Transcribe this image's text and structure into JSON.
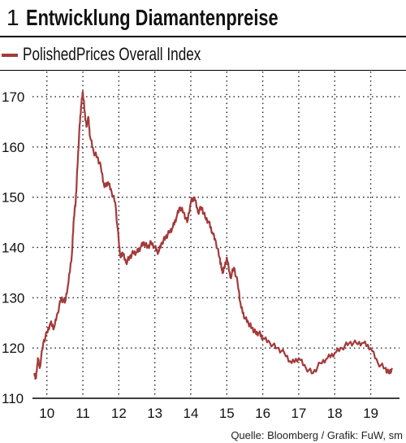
{
  "header": {
    "number": "1",
    "title": "Entwicklung Diamantenpreise"
  },
  "legend": {
    "label": "PolishedPrices Overall Index",
    "color": "#a33a3a"
  },
  "source": "Quelle: Bloomberg / Grafik: FuW, sm",
  "chart_data": {
    "type": "line",
    "title": "Entwicklung Diamantenpreise",
    "xlabel": "",
    "ylabel": "",
    "xlim": [
      2009.6,
      2019.8
    ],
    "ylim": [
      110,
      175
    ],
    "x_ticks": [
      2010,
      2011,
      2012,
      2013,
      2014,
      2015,
      2016,
      2017,
      2018,
      2019
    ],
    "x_tick_labels": [
      "10",
      "11",
      "12",
      "13",
      "14",
      "15",
      "16",
      "17",
      "18",
      "19"
    ],
    "y_ticks": [
      110,
      120,
      130,
      140,
      150,
      160,
      170
    ],
    "y_tick_labels": [
      "110",
      "120",
      "130",
      "140",
      "150",
      "160",
      "170"
    ],
    "grid": true,
    "series": [
      {
        "name": "PolishedPrices Overall Index",
        "color": "#a33a3a",
        "x": [
          2009.65,
          2009.7,
          2009.75,
          2009.8,
          2009.9,
          2010.0,
          2010.1,
          2010.2,
          2010.3,
          2010.4,
          2010.5,
          2010.6,
          2010.7,
          2010.75,
          2010.8,
          2010.85,
          2010.9,
          2010.95,
          2011.0,
          2011.05,
          2011.1,
          2011.15,
          2011.2,
          2011.3,
          2011.4,
          2011.5,
          2011.6,
          2011.7,
          2011.8,
          2011.9,
          2012.0,
          2012.05,
          2012.1,
          2012.2,
          2012.3,
          2012.4,
          2012.5,
          2012.6,
          2012.7,
          2012.8,
          2012.9,
          2013.0,
          2013.1,
          2013.2,
          2013.3,
          2013.4,
          2013.5,
          2013.6,
          2013.7,
          2013.8,
          2013.9,
          2014.0,
          2014.1,
          2014.2,
          2014.3,
          2014.4,
          2014.5,
          2014.6,
          2014.7,
          2014.8,
          2014.85,
          2014.9,
          2015.0,
          2015.1,
          2015.2,
          2015.3,
          2015.4,
          2015.5,
          2015.6,
          2015.7,
          2015.8,
          2015.9,
          2016.0,
          2016.2,
          2016.4,
          2016.6,
          2016.8,
          2017.0,
          2017.2,
          2017.4,
          2017.6,
          2017.8,
          2018.0,
          2018.2,
          2018.4,
          2018.6,
          2018.8,
          2019.0,
          2019.2,
          2019.4,
          2019.5,
          2019.6
        ],
        "values": [
          115,
          114,
          118,
          116,
          121,
          123,
          125,
          124,
          127,
          130,
          129,
          133,
          139,
          146,
          149,
          156,
          163,
          168,
          171,
          167,
          164,
          166,
          162,
          159,
          158,
          156,
          152,
          153,
          151,
          149,
          141,
          138,
          139,
          137,
          138,
          139,
          139,
          140,
          141,
          140,
          141,
          140,
          139,
          141,
          142,
          143,
          144,
          146,
          148,
          147,
          145,
          149,
          150,
          147,
          148,
          146,
          145,
          143,
          141,
          138,
          136,
          135,
          138,
          134,
          136,
          133,
          128,
          126,
          125,
          124,
          123,
          123,
          122,
          121,
          120,
          119,
          117,
          118,
          116,
          115,
          117,
          118,
          119,
          120,
          121,
          121,
          121,
          120,
          117,
          116,
          115,
          116
        ]
      }
    ]
  }
}
